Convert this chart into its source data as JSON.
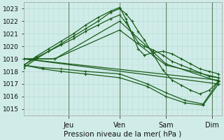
{
  "background_color": "#d0ece8",
  "grid_color": "#b8ddd8",
  "line_color": "#1a5c1a",
  "ylabel_ticks": [
    1015,
    1016,
    1017,
    1018,
    1019,
    1020,
    1021,
    1022,
    1023
  ],
  "xlabel": "Pression niveau de la mer( hPa )",
  "day_labels": [
    "Jeu",
    "Ven",
    "Sam",
    "Dim"
  ],
  "day_positions": [
    72,
    155,
    230,
    305
  ],
  "xlim": [
    0,
    320
  ],
  "ylim": [
    1014.5,
    1023.5
  ],
  "lines": [
    {
      "x": [
        0,
        20,
        40,
        60,
        80,
        100,
        120,
        140,
        155,
        165,
        175,
        185,
        195,
        210,
        225,
        240,
        255,
        270,
        285,
        300,
        315
      ],
      "y": [
        1018.3,
        1019.0,
        1019.6,
        1020.2,
        1020.8,
        1021.4,
        1022.0,
        1022.7,
        1023.0,
        1022.6,
        1022.0,
        1021.2,
        1020.5,
        1019.3,
        1018.1,
        1017.3,
        1016.9,
        1016.5,
        1016.2,
        1016.5,
        1017.2
      ]
    },
    {
      "x": [
        0,
        20,
        40,
        60,
        80,
        100,
        120,
        140,
        155,
        165,
        175,
        185,
        195,
        210,
        225,
        240,
        255,
        270,
        285,
        300,
        315
      ],
      "y": [
        1018.5,
        1019.2,
        1019.8,
        1020.4,
        1021.0,
        1021.7,
        1022.3,
        1022.8,
        1023.1,
        1022.2,
        1021.0,
        1019.8,
        1019.3,
        1019.5,
        1019.6,
        1019.4,
        1019.0,
        1018.6,
        1018.2,
        1018.0,
        1017.8
      ]
    },
    {
      "x": [
        0,
        20,
        40,
        60,
        80,
        100,
        120,
        140,
        155,
        165,
        175,
        185,
        195,
        210,
        225,
        240,
        255,
        270,
        285,
        300,
        315
      ],
      "y": [
        1018.5,
        1019.1,
        1019.6,
        1020.1,
        1020.6,
        1021.2,
        1021.7,
        1022.2,
        1022.5,
        1021.9,
        1021.1,
        1020.3,
        1020.0,
        1019.7,
        1019.3,
        1018.8,
        1018.5,
        1018.2,
        1017.9,
        1017.6,
        1017.5
      ]
    },
    {
      "x": [
        0,
        50,
        155,
        230,
        315
      ],
      "y": [
        1019.0,
        1019.0,
        1022.0,
        1018.6,
        1017.2
      ]
    },
    {
      "x": [
        0,
        50,
        155,
        230,
        315
      ],
      "y": [
        1019.0,
        1019.0,
        1021.3,
        1018.5,
        1017.5
      ]
    },
    {
      "x": [
        0,
        315
      ],
      "y": [
        1019.0,
        1017.3
      ]
    },
    {
      "x": [
        0,
        315
      ],
      "y": [
        1019.0,
        1017.0
      ]
    },
    {
      "x": [
        0,
        30,
        60,
        100,
        155,
        200,
        230,
        260,
        290,
        315
      ],
      "y": [
        1018.5,
        1018.3,
        1018.2,
        1018.0,
        1017.8,
        1017.0,
        1016.3,
        1015.7,
        1015.4,
        1017.2
      ]
    },
    {
      "x": [
        0,
        30,
        60,
        100,
        155,
        200,
        230,
        260,
        290,
        315
      ],
      "y": [
        1018.5,
        1018.2,
        1018.0,
        1017.8,
        1017.5,
        1016.8,
        1016.0,
        1015.5,
        1015.3,
        1017.0
      ]
    }
  ]
}
